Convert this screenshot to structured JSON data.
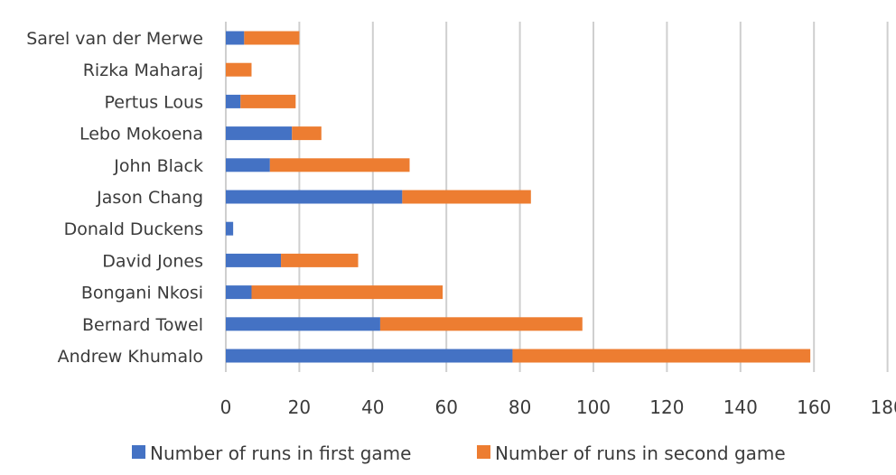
{
  "chart_data": {
    "type": "bar",
    "orientation": "horizontal",
    "stacked": true,
    "categories": [
      "Andrew Khumalo",
      "Bernard Towel",
      "Bongani Nkosi",
      "David Jones",
      "Donald Duckens",
      "Jason Chang",
      "John Black",
      "Lebo Mokoena",
      "Pertus Lous",
      "Rizka Maharaj",
      "Sarel van der Merwe"
    ],
    "series": [
      {
        "name": "Number of runs in first game",
        "color": "#4472c4",
        "values": [
          78,
          42,
          7,
          15,
          2,
          48,
          12,
          18,
          4,
          0,
          5
        ]
      },
      {
        "name": "Number of runs in second game",
        "color": "#ed7d31",
        "values": [
          81,
          55,
          52,
          21,
          0,
          35,
          38,
          8,
          15,
          7,
          15
        ]
      }
    ],
    "xlim": [
      0,
      180
    ],
    "xticks": [
      "0",
      "20",
      "40",
      "60",
      "80",
      "100",
      "120",
      "140",
      "160",
      "180"
    ],
    "grid": "vertical",
    "legend": "bottom"
  }
}
